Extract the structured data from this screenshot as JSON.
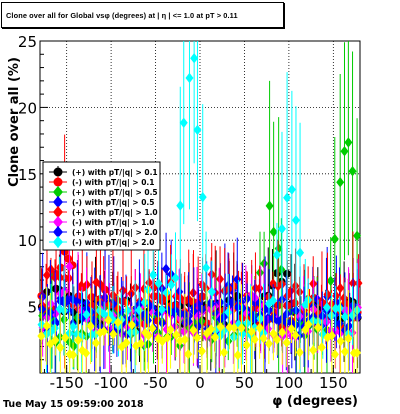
{
  "chart_data": {
    "type": "scatter",
    "title": "Clone  over all for Global vsφ (degrees) at | η | <= 1.0 at pT > 0.11",
    "xlabel": "φ (degrees)",
    "ylabel": "Clone  over all (%)",
    "xlim": [
      -180,
      180
    ],
    "ylim": [
      0,
      25
    ],
    "x_ticks": [
      -150,
      -100,
      -50,
      0,
      50,
      100,
      150
    ],
    "y_ticks": [
      5,
      10,
      15,
      20,
      25
    ],
    "grid": "dotted",
    "legend_position": "left",
    "series": [
      {
        "name": "(+) with pT/|q| > 0.1",
        "color": "#000000",
        "marker": "circle",
        "base": 4.4,
        "bumps": [
          [
            -160,
            1.2
          ],
          [
            90,
            3.5
          ],
          [
            40,
            1.0
          ]
        ]
      },
      {
        "name": "(-) with pT/|q| > 0.1",
        "color": "#ff0000",
        "marker": "circle",
        "base": 4.6,
        "bumps": [
          [
            -150,
            4.0
          ],
          [
            -100,
            1.2
          ],
          [
            40,
            0.8
          ]
        ]
      },
      {
        "name": "(+) with pT/|q| > 0.5",
        "color": "#00cc00",
        "marker": "diamond",
        "base": 3.2,
        "bumps": [
          [
            -110,
            1.5
          ],
          [
            165,
            15.0
          ],
          [
            80,
            8.5
          ]
        ]
      },
      {
        "name": "(-) with pT/|q| > 0.5",
        "color": "#0000ff",
        "marker": "diamond",
        "base": 4.7,
        "bumps": [
          [
            40,
            2.5
          ],
          [
            -40,
            2.3
          ]
        ]
      },
      {
        "name": "(+) with pT/|q| > 1.0",
        "color": "#ff0000",
        "marker": "diamond",
        "base": 5.7,
        "bumps": [
          [
            -160,
            2.5
          ],
          [
            20,
            1.0
          ]
        ]
      },
      {
        "name": "(-) with pT/|q| > 1.0",
        "color": "#ff00ff",
        "marker": "diamond",
        "base": 3.9,
        "bumps": [
          [
            -150,
            3.5
          ],
          [
            60,
            1.0
          ]
        ]
      },
      {
        "name": "(+) with pT/|q| > 2.0",
        "color": "#0000ff",
        "marker": "diamond",
        "base": 4.0,
        "bumps": [
          [
            40,
            2.0
          ],
          [
            -140,
            1.5
          ]
        ]
      },
      {
        "name": "(-) with pT/|q| > 2.0",
        "color": "#00ffff",
        "marker": "diamond",
        "base": 3.8,
        "bumps": [
          [
            -10,
            20.0
          ],
          [
            100,
            10.0
          ],
          [
            -50,
            2.5
          ]
        ]
      },
      {
        "name": "",
        "color": "#ffff00",
        "marker": "diamond",
        "base": 2.5,
        "bumps": [
          [
            -100,
            1.5
          ]
        ]
      }
    ]
  },
  "footer": {
    "date": "Tue May 15 09:59:00 2018"
  }
}
